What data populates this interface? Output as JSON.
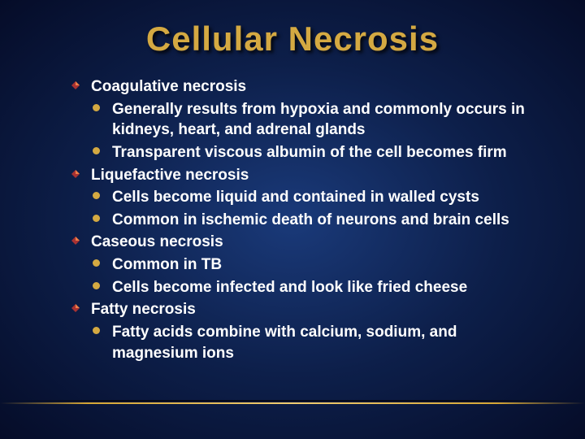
{
  "title_text": "Cellular Necrosis",
  "title_fontsize": 42,
  "title_color": "#d4a942",
  "body_fontsize": 19,
  "body_color": "#ffffff",
  "bullet_color_level2": "#d4a942",
  "bullet_colors_level1": {
    "fill": "#a83232",
    "highlight": "#f08048"
  },
  "background_gradient": {
    "center": "#1a3a7a",
    "mid": "#0d1f4a",
    "edge": "#050c28"
  },
  "divider_color": "#d6a634",
  "items": [
    {
      "label": "Coagulative necrosis",
      "children": [
        {
          "label": "Generally results from hypoxia and commonly occurs in kidneys, heart, and adrenal glands"
        },
        {
          "label": "Transparent viscous albumin of the cell becomes firm"
        }
      ]
    },
    {
      "label": "Liquefactive necrosis",
      "children": [
        {
          "label": "Cells become liquid and contained in walled cysts"
        },
        {
          "label": "Common in ischemic death of neurons and brain cells"
        }
      ]
    },
    {
      "label": "Caseous necrosis",
      "children": [
        {
          "label": "Common in TB"
        },
        {
          "label": "Cells become infected and look like fried cheese"
        }
      ]
    },
    {
      "label": "Fatty necrosis",
      "children": [
        {
          "label": "Fatty acids combine with calcium, sodium, and magnesium ions"
        }
      ]
    }
  ]
}
